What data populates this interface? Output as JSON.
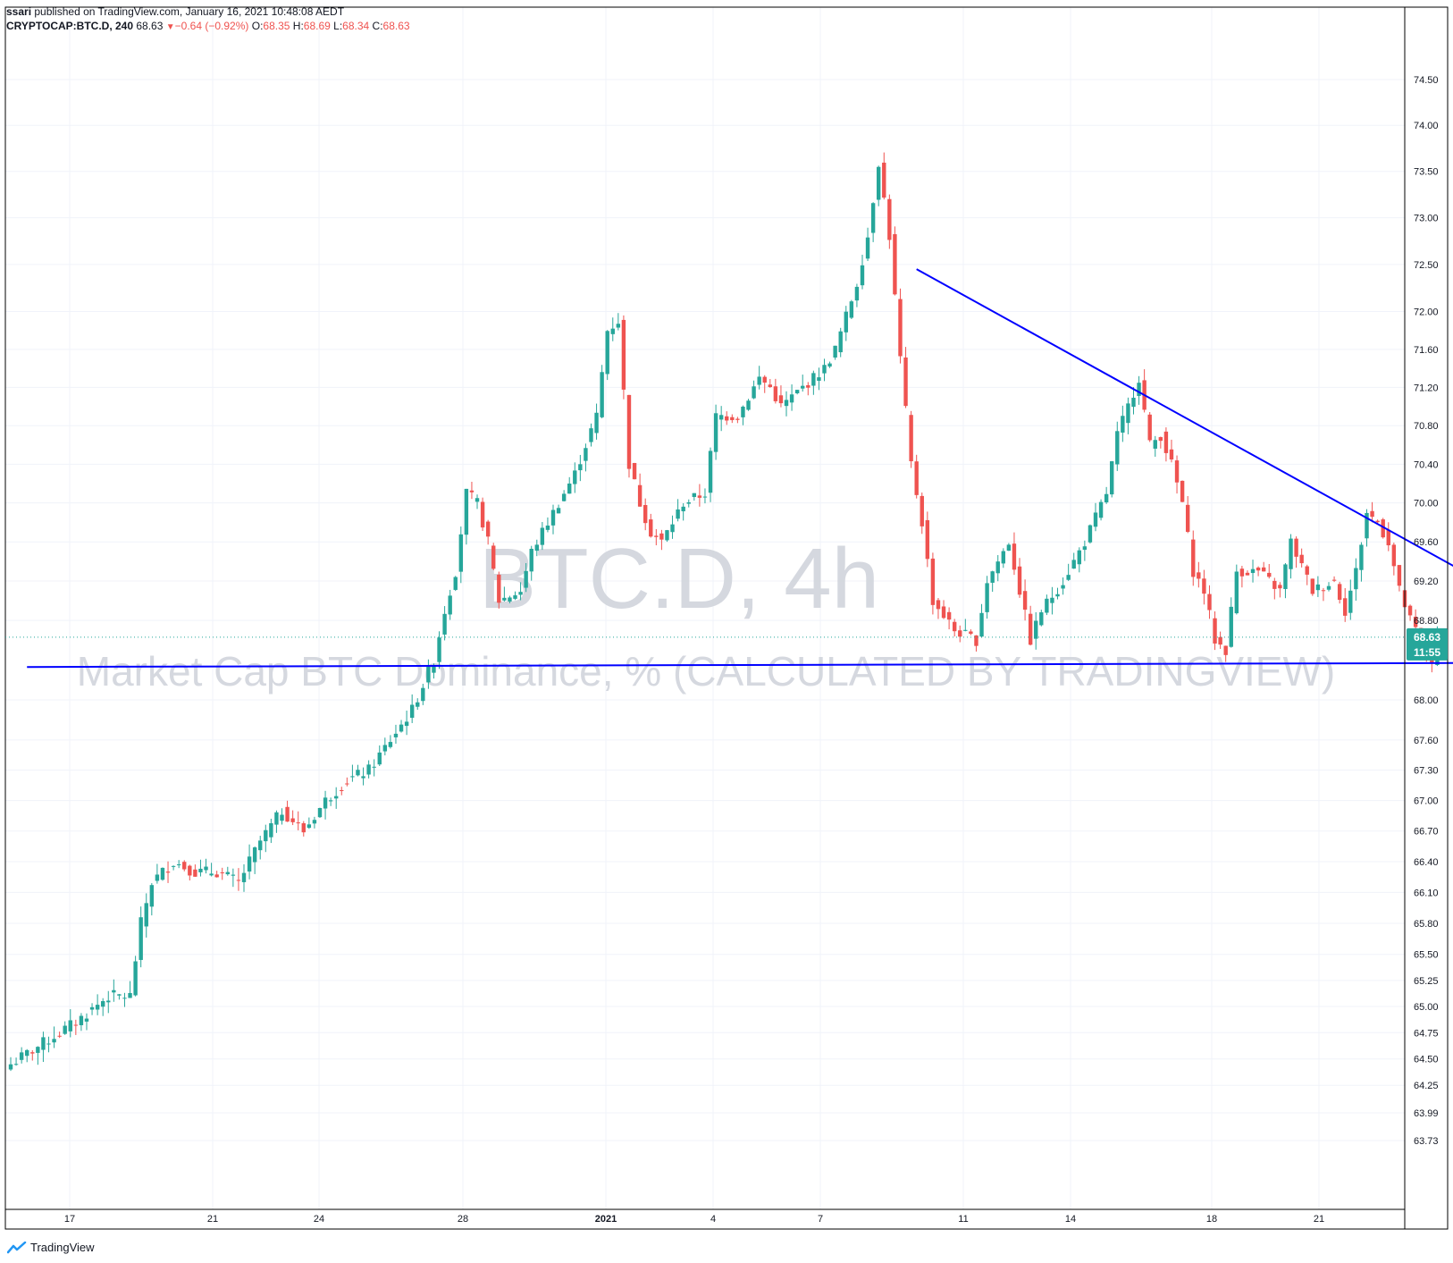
{
  "header": {
    "author": "ssari",
    "published_text": " published on TradingView.com, January 16, 2021 10:48:08 AEDT",
    "symbol": "CRYPTOCAP:BTC.D, 240",
    "last": "68.63",
    "change": "−0.64 (−0.92%)",
    "o_label": "O:",
    "o_value": "68.35",
    "h_label": "H:",
    "h_value": "68.69",
    "l_label": "L:",
    "l_value": "68.34",
    "c_label": "C:",
    "c_value": "68.63"
  },
  "watermark": {
    "title": "BTC.D, 4h",
    "subtitle": "Market Cap BTC Dominance, % (CALCULATED BY TRADINGVIEW)"
  },
  "price_badge": {
    "price": "68.63",
    "countdown": "11:55"
  },
  "footer": {
    "brand": "TradingView"
  },
  "colors": {
    "up": "#26a69a",
    "down": "#ef5350",
    "trendline": "#0000ff",
    "badge": "#26a69a"
  },
  "chart_data": {
    "type": "candlestick",
    "interval": "4h",
    "x_ticks": [
      "17",
      "21",
      "24",
      "28",
      "2021",
      "4",
      "7",
      "11",
      "14",
      "18",
      "21"
    ],
    "y_ticks": [
      "74.50",
      "74.00",
      "73.50",
      "73.00",
      "72.50",
      "72.00",
      "71.60",
      "71.20",
      "70.80",
      "70.40",
      "70.00",
      "69.60",
      "69.20",
      "68.80",
      "68.00",
      "67.60",
      "67.30",
      "67.00",
      "66.70",
      "66.40",
      "66.10",
      "65.80",
      "65.50",
      "65.25",
      "65.00",
      "64.75",
      "64.50",
      "64.25",
      "63.99",
      "63.73"
    ],
    "y_scale": "log",
    "ylim": [
      63.5,
      75.0
    ],
    "grid": true,
    "approx_close_path": [
      [
        0,
        64.45
      ],
      [
        6,
        64.65
      ],
      [
        12,
        64.85
      ],
      [
        18,
        65.1
      ],
      [
        22,
        65.1
      ],
      [
        24,
        65.8
      ],
      [
        26,
        66.2
      ],
      [
        30,
        66.4
      ],
      [
        34,
        66.3
      ],
      [
        38,
        66.3
      ],
      [
        42,
        66.2
      ],
      [
        46,
        66.6
      ],
      [
        50,
        66.9
      ],
      [
        54,
        66.7
      ],
      [
        58,
        67.0
      ],
      [
        62,
        67.2
      ],
      [
        66,
        67.3
      ],
      [
        70,
        67.6
      ],
      [
        74,
        67.9
      ],
      [
        78,
        68.4
      ],
      [
        80,
        68.9
      ],
      [
        82,
        69.3
      ],
      [
        84,
        70.1
      ],
      [
        86,
        70.0
      ],
      [
        88,
        69.6
      ],
      [
        90,
        69.0
      ],
      [
        94,
        69.1
      ],
      [
        96,
        69.5
      ],
      [
        100,
        69.9
      ],
      [
        104,
        70.3
      ],
      [
        108,
        70.9
      ],
      [
        110,
        71.8
      ],
      [
        112,
        71.9
      ],
      [
        114,
        70.4
      ],
      [
        116,
        70.0
      ],
      [
        118,
        69.7
      ],
      [
        120,
        69.6
      ],
      [
        124,
        70.0
      ],
      [
        128,
        70.1
      ],
      [
        130,
        70.9
      ],
      [
        134,
        70.9
      ],
      [
        138,
        71.3
      ],
      [
        140,
        71.2
      ],
      [
        142,
        71.0
      ],
      [
        146,
        71.2
      ],
      [
        150,
        71.4
      ],
      [
        152,
        71.6
      ],
      [
        156,
        72.3
      ],
      [
        158,
        72.8
      ],
      [
        160,
        73.6
      ],
      [
        162,
        72.8
      ],
      [
        164,
        71.5
      ],
      [
        166,
        70.4
      ],
      [
        168,
        69.8
      ],
      [
        170,
        69.0
      ],
      [
        174,
        68.7
      ],
      [
        178,
        68.6
      ],
      [
        180,
        69.2
      ],
      [
        184,
        69.6
      ],
      [
        188,
        68.6
      ],
      [
        190,
        68.9
      ],
      [
        194,
        69.2
      ],
      [
        198,
        69.6
      ],
      [
        202,
        70.1
      ],
      [
        204,
        70.7
      ],
      [
        206,
        71.0
      ],
      [
        208,
        71.3
      ],
      [
        210,
        70.6
      ],
      [
        212,
        70.7
      ],
      [
        214,
        70.4
      ],
      [
        216,
        70.0
      ],
      [
        218,
        69.3
      ],
      [
        220,
        69.1
      ],
      [
        222,
        68.6
      ],
      [
        224,
        68.5
      ],
      [
        226,
        69.3
      ],
      [
        230,
        69.3
      ],
      [
        234,
        69.1
      ],
      [
        236,
        69.6
      ],
      [
        240,
        69.1
      ],
      [
        244,
        69.2
      ],
      [
        246,
        68.9
      ],
      [
        248,
        69.3
      ],
      [
        250,
        69.9
      ],
      [
        252,
        69.8
      ],
      [
        254,
        69.6
      ],
      [
        256,
        69.1
      ],
      [
        258,
        68.8
      ],
      [
        260,
        68.6
      ],
      [
        262,
        68.4
      ],
      [
        263,
        68.63
      ]
    ],
    "trendlines": [
      {
        "name": "descending resistance",
        "from": [
          167,
          72.45
        ],
        "to": [
          272,
          69.17
        ]
      },
      {
        "name": "horizontal support",
        "from": [
          3,
          68.33
        ],
        "to": [
          269,
          68.37
        ]
      }
    ],
    "last_price": 68.63
  }
}
